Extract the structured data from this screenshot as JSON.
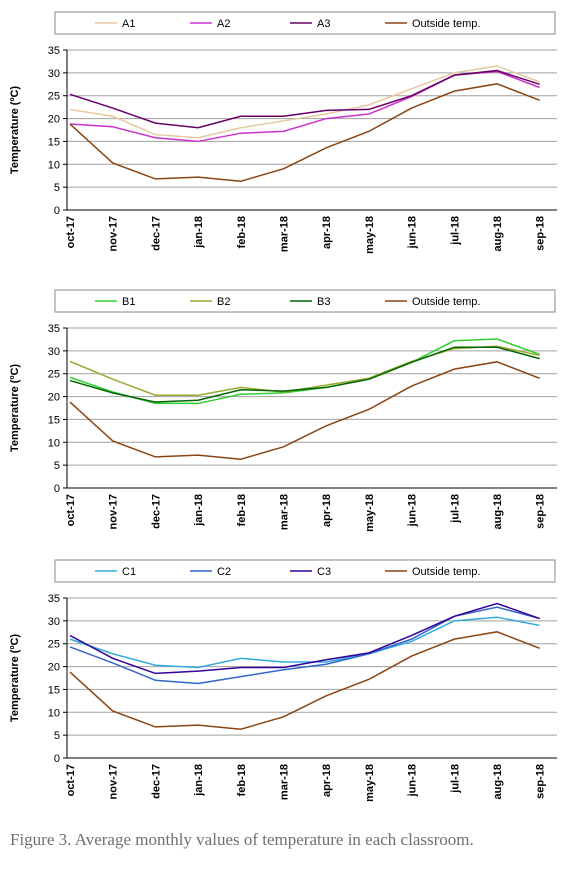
{
  "chart_data": [
    {
      "type": "line",
      "ylabel": "Temperature (ºC)",
      "categories": [
        "oct-17",
        "nov-17",
        "dec-17",
        "jan-18",
        "feb-18",
        "mar-18",
        "apr-18",
        "may-18",
        "jun-18",
        "jul-18",
        "aug-18",
        "sep-18"
      ],
      "ylim": [
        0,
        35
      ],
      "yticks": [
        0,
        5,
        10,
        15,
        20,
        25,
        30,
        35
      ],
      "grid": true,
      "series": [
        {
          "name": "A1",
          "color": "#e6c8a2",
          "values": [
            22,
            20.5,
            16.5,
            15.8,
            18,
            19.5,
            21,
            23,
            26.5,
            30,
            31.5,
            28
          ]
        },
        {
          "name": "A2",
          "color": "#cc33cc",
          "values": [
            18.8,
            18.2,
            15.8,
            15,
            16.8,
            17.2,
            20,
            21,
            24.8,
            29.5,
            30.3,
            26.8
          ]
        },
        {
          "name": "A3",
          "color": "#660066",
          "values": [
            25.3,
            22.3,
            19,
            18,
            20.5,
            20.5,
            21.8,
            22,
            25,
            29.5,
            30.5,
            27.5
          ]
        },
        {
          "name": "Outside temp.",
          "color": "#8b4513",
          "values": [
            18.8,
            10.3,
            6.8,
            7.2,
            6.3,
            9,
            13.6,
            17.2,
            22.3,
            26,
            27.6,
            24
          ]
        }
      ]
    },
    {
      "type": "line",
      "ylabel": "Temperature (ºC)",
      "categories": [
        "oct-17",
        "nov-17",
        "dec-17",
        "jan-18",
        "feb-18",
        "mar-18",
        "apr-18",
        "may-18",
        "jun-18",
        "jul-18",
        "aug-18",
        "sep-18"
      ],
      "ylim": [
        0,
        35
      ],
      "yticks": [
        0,
        5,
        10,
        15,
        20,
        25,
        30,
        35
      ],
      "grid": true,
      "series": [
        {
          "name": "B1",
          "color": "#33cc33",
          "values": [
            24.2,
            21,
            18.5,
            18.5,
            20.5,
            20.8,
            22,
            23.8,
            27.5,
            32.2,
            32.6,
            29.2
          ]
        },
        {
          "name": "B2",
          "color": "#99aa33",
          "values": [
            27.7,
            23.8,
            20.3,
            20.3,
            22,
            21,
            22.5,
            24,
            27.7,
            30.5,
            31,
            29
          ]
        },
        {
          "name": "B3",
          "color": "#006600",
          "values": [
            23.5,
            20.8,
            18.8,
            19.2,
            21.5,
            21.2,
            22,
            23.8,
            27.5,
            30.8,
            30.8,
            28.3
          ]
        },
        {
          "name": "Outside temp.",
          "color": "#8b4513",
          "values": [
            18.8,
            10.3,
            6.8,
            7.2,
            6.3,
            9,
            13.6,
            17.2,
            22.3,
            26,
            27.6,
            24
          ]
        }
      ]
    },
    {
      "type": "line",
      "ylabel": "Temperature (ºC)",
      "categories": [
        "oct-17",
        "nov-17",
        "dec-17",
        "jan-18",
        "feb-18",
        "mar-18",
        "apr-18",
        "may-18",
        "jun-18",
        "jul-18",
        "aug-18",
        "sep-18"
      ],
      "ylim": [
        0,
        35
      ],
      "yticks": [
        0,
        5,
        10,
        15,
        20,
        25,
        30,
        35
      ],
      "grid": true,
      "series": [
        {
          "name": "C1",
          "color": "#33aadd",
          "values": [
            26,
            22.8,
            20.3,
            19.8,
            21.8,
            21,
            21,
            22.8,
            25.5,
            30,
            30.8,
            29
          ]
        },
        {
          "name": "C2",
          "color": "#3366cc",
          "values": [
            24.3,
            20.8,
            17,
            16.3,
            17.8,
            19.3,
            20.5,
            22.8,
            26,
            31,
            33,
            30.5
          ]
        },
        {
          "name": "C3",
          "color": "#330099",
          "values": [
            26.8,
            21.8,
            18.5,
            19,
            19.8,
            19.8,
            21.5,
            23,
            26.8,
            31,
            33.8,
            30.5
          ]
        },
        {
          "name": "Outside temp.",
          "color": "#8b4513",
          "values": [
            18.8,
            10.3,
            6.8,
            7.2,
            6.3,
            9,
            13.6,
            17.2,
            22.3,
            26,
            27.6,
            24
          ]
        }
      ]
    }
  ],
  "caption": "Figure 3. Average monthly values of temperature in each classroom."
}
